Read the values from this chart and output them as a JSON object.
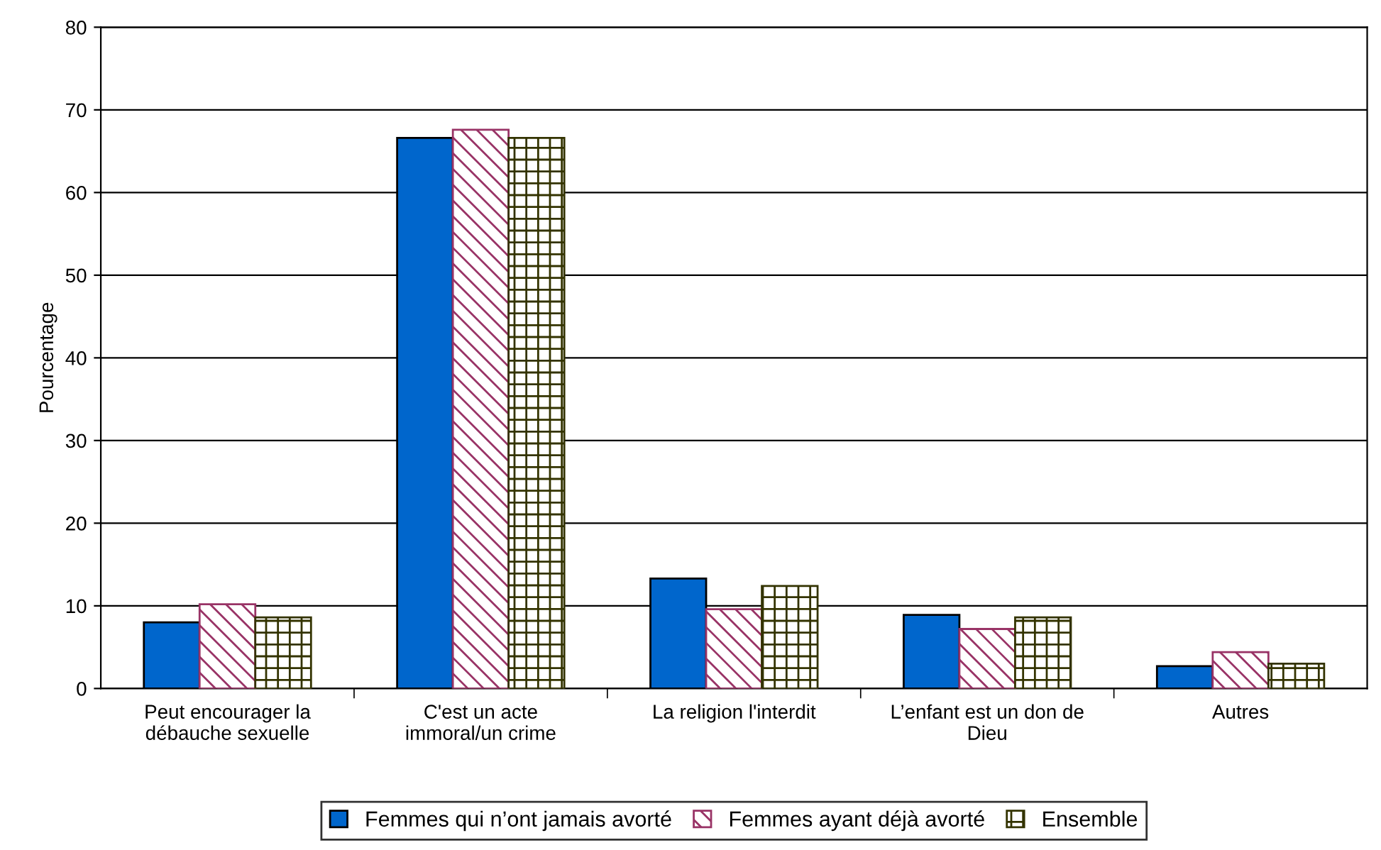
{
  "chart_data": {
    "type": "bar",
    "ylabel": "Pourcentage",
    "categories": [
      "Peut encourager la\ndébauche sexuelle",
      "C'est un acte\nimmoral/un crime",
      "La religion l'interdit",
      "L’enfant est un don de\nDieu",
      "Autres"
    ],
    "series": [
      {
        "name": "Femmes qui n’ont jamais avorté",
        "color": "#0066cc",
        "values": [
          8.0,
          66.6,
          13.3,
          8.9,
          2.7
        ]
      },
      {
        "name": "Femmes ayant déjà avorté",
        "color": "#993366",
        "values": [
          10.2,
          67.6,
          9.6,
          7.2,
          4.4
        ]
      },
      {
        "name": "Ensemble",
        "color": "#333300",
        "values": [
          8.6,
          66.6,
          12.4,
          8.6,
          3.0
        ]
      }
    ],
    "ylim": [
      0,
      80
    ],
    "yticks": [
      0,
      10,
      20,
      30,
      40,
      50,
      60,
      70,
      80
    ],
    "grid": "y",
    "legend": "bottom"
  }
}
